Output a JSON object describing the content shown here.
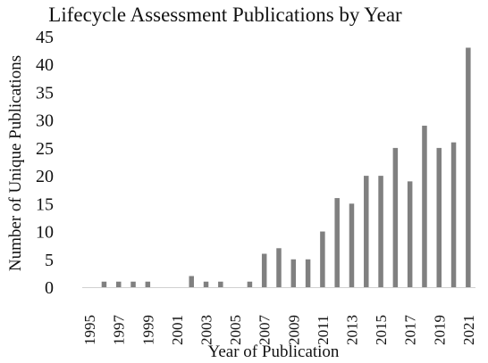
{
  "chart_data": {
    "type": "bar",
    "title": "Lifecycle Assessment Publications by Year",
    "xlabel": "Year of Publication",
    "ylabel": "Number of Unique Publications",
    "ylim": [
      0,
      45
    ],
    "yticks": [
      0,
      5,
      10,
      15,
      20,
      25,
      30,
      35,
      40,
      45
    ],
    "grid": false,
    "bar_color": "#808080",
    "categories": [
      "1995",
      "1996",
      "1997",
      "1998",
      "1999",
      "2000",
      "2001",
      "2002",
      "2003",
      "2004",
      "2005",
      "2006",
      "2007",
      "2008",
      "2009",
      "2010",
      "2011",
      "2012",
      "2013",
      "2014",
      "2015",
      "2016",
      "2017",
      "2018",
      "2019",
      "2020",
      "2021"
    ],
    "x_tick_labels": [
      "1995",
      "1997",
      "1999",
      "2001",
      "2003",
      "2005",
      "2007",
      "2009",
      "2011",
      "2013",
      "2015",
      "2017",
      "2019",
      "2021"
    ],
    "values": [
      0,
      1,
      1,
      1,
      1,
      0,
      0,
      2,
      1,
      1,
      0,
      1,
      6,
      7,
      5,
      5,
      10,
      16,
      15,
      20,
      20,
      25,
      19,
      29,
      25,
      26,
      43
    ]
  }
}
